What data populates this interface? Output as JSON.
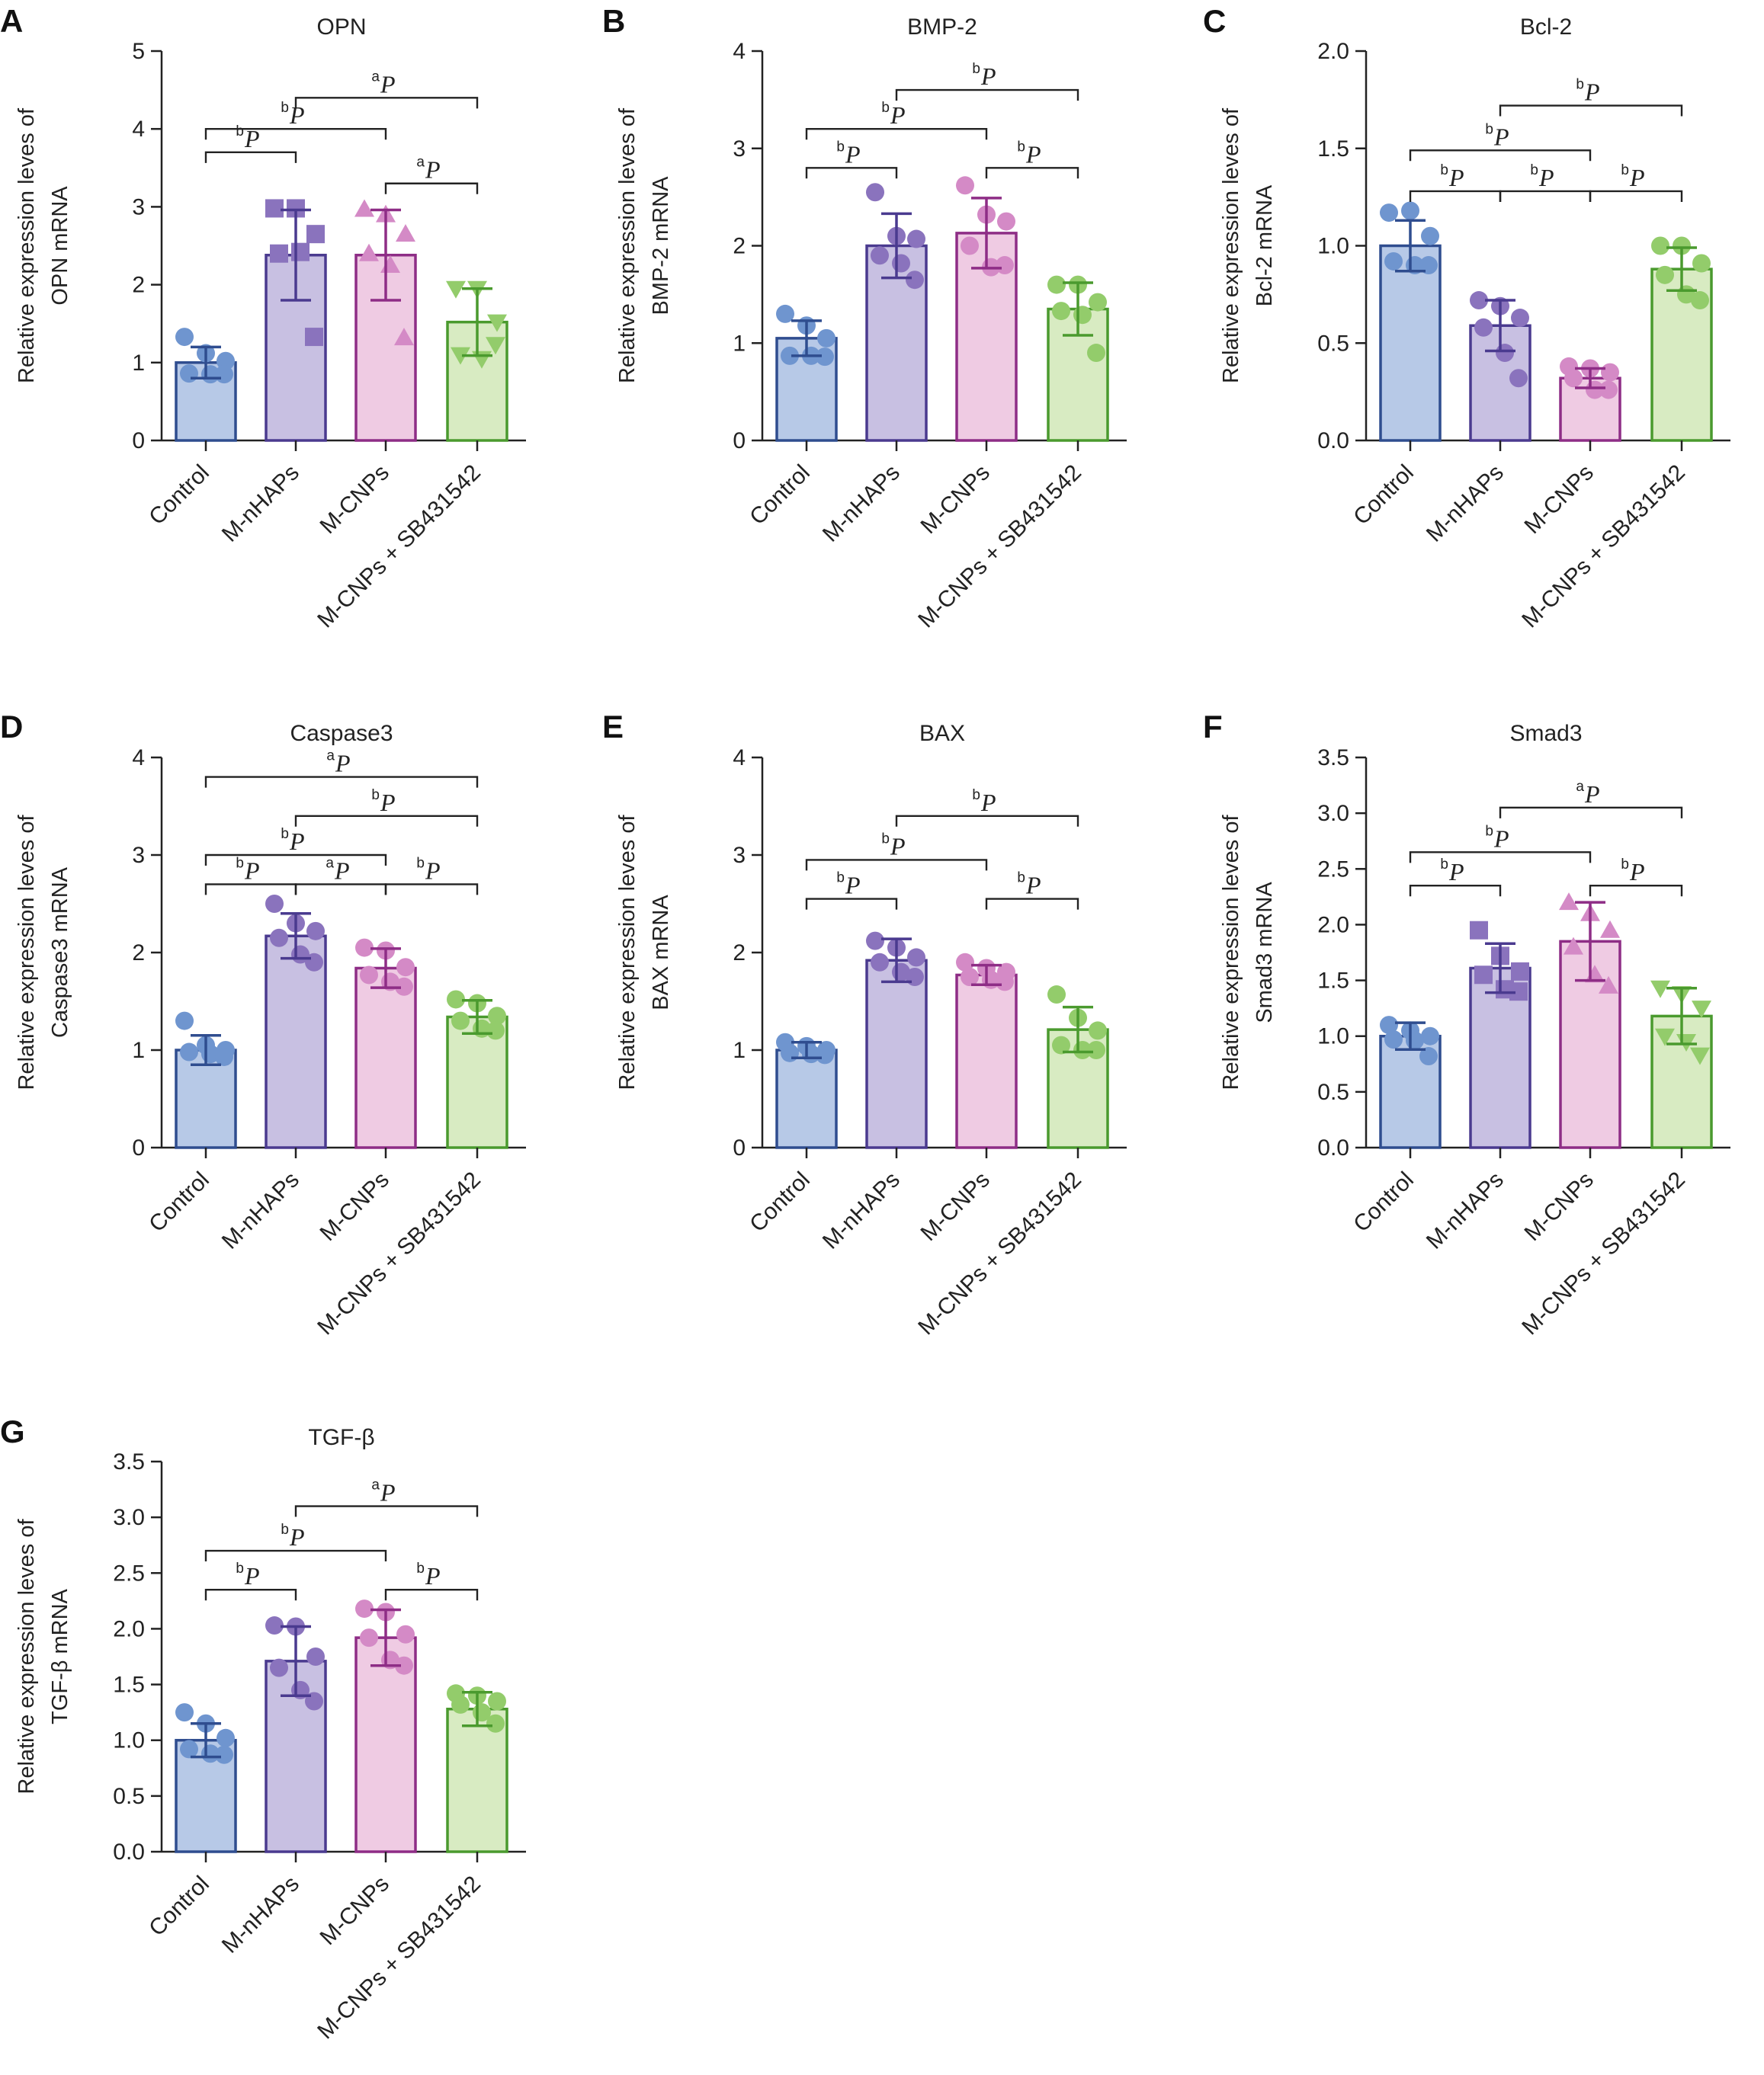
{
  "colors": {
    "Control": {
      "fill": "#b7c9e7",
      "stroke": "#2f4d8f",
      "point": "#6f95cf"
    },
    "M-nHAPs": {
      "fill": "#c8c0e2",
      "stroke": "#4a3a8f",
      "point": "#8a73bd"
    },
    "M-CNPs": {
      "fill": "#efcbe3",
      "stroke": "#8e2d86",
      "point": "#d48ac6"
    },
    "M-CNPs + SB431542": {
      "fill": "#d8ebc2",
      "stroke": "#4a9a2e",
      "point": "#93cc6b"
    }
  },
  "chart_data": [
    {
      "panel": "A",
      "type": "bar",
      "title": "OPN",
      "ylabel_lines": [
        "Relative expression leves of",
        "OPN mRNA"
      ],
      "categories": [
        "Control",
        "M-nHAPs",
        "M-CNPs",
        "M-CNPs + SB431542"
      ],
      "marker": [
        "circle",
        "square",
        "triangle",
        "triangle-down"
      ],
      "ylim": [
        0,
        5
      ],
      "yticks": [
        "0",
        "1",
        "2",
        "3",
        "4",
        "5"
      ],
      "values": [
        1.0,
        2.38,
        2.38,
        1.52
      ],
      "errors": [
        0.2,
        0.58,
        0.58,
        0.43
      ],
      "points": [
        [
          1.33,
          1.12,
          1.02,
          0.86,
          0.85,
          0.85
        ],
        [
          2.98,
          2.98,
          2.65,
          2.4,
          2.42,
          1.33
        ],
        [
          2.97,
          2.9,
          2.65,
          2.4,
          2.25,
          1.32
        ],
        [
          1.95,
          1.95,
          1.52,
          1.1,
          1.05,
          1.23
        ]
      ],
      "significance": [
        {
          "from": 0,
          "to": 1,
          "y": 3.7,
          "sup": "b",
          "label": "P"
        },
        {
          "from": 0,
          "to": 2,
          "y": 4.0,
          "sup": "b",
          "label": "P"
        },
        {
          "from": 2,
          "to": 3,
          "y": 3.3,
          "sup": "a",
          "label": "P"
        },
        {
          "from": 1,
          "to": 3,
          "y": 4.4,
          "sup": "a",
          "label": "P"
        }
      ]
    },
    {
      "panel": "B",
      "type": "bar",
      "title": "BMP-2",
      "ylabel_lines": [
        "Relative expression leves of",
        "BMP-2 mRNA"
      ],
      "categories": [
        "Control",
        "M-nHAPs",
        "M-CNPs",
        "M-CNPs + SB431542"
      ],
      "marker": [
        "circle",
        "circle",
        "circle",
        "circle"
      ],
      "ylim": [
        0,
        4
      ],
      "yticks": [
        "0",
        "1",
        "2",
        "3",
        "4"
      ],
      "values": [
        1.05,
        2.0,
        2.13,
        1.35
      ],
      "errors": [
        0.18,
        0.33,
        0.36,
        0.27
      ],
      "points": [
        [
          1.3,
          1.18,
          1.05,
          0.87,
          0.87,
          0.86
        ],
        [
          2.55,
          2.1,
          2.07,
          1.9,
          1.82,
          1.65
        ],
        [
          2.62,
          2.32,
          2.25,
          2.0,
          1.78,
          1.8
        ],
        [
          1.6,
          1.6,
          1.42,
          1.33,
          1.29,
          0.9
        ]
      ],
      "significance": [
        {
          "from": 0,
          "to": 1,
          "y": 2.8,
          "sup": "b",
          "label": "P"
        },
        {
          "from": 0,
          "to": 2,
          "y": 3.2,
          "sup": "b",
          "label": "P"
        },
        {
          "from": 2,
          "to": 3,
          "y": 2.8,
          "sup": "b",
          "label": "P"
        },
        {
          "from": 1,
          "to": 3,
          "y": 3.6,
          "sup": "b",
          "label": "P"
        }
      ]
    },
    {
      "panel": "C",
      "type": "bar",
      "title": "Bcl-2",
      "ylabel_lines": [
        "Relative expression leves of",
        "Bcl-2 mRNA"
      ],
      "categories": [
        "Control",
        "M-nHAPs",
        "M-CNPs",
        "M-CNPs + SB431542"
      ],
      "marker": [
        "circle",
        "circle",
        "circle",
        "circle"
      ],
      "ylim": [
        0,
        2.0
      ],
      "yticks": [
        "0.0",
        "0.5",
        "1.0",
        "1.5",
        "2.0"
      ],
      "values": [
        1.0,
        0.59,
        0.32,
        0.88
      ],
      "errors": [
        0.13,
        0.13,
        0.05,
        0.11
      ],
      "points": [
        [
          1.17,
          1.18,
          1.05,
          0.92,
          0.9,
          0.9
        ],
        [
          0.72,
          0.69,
          0.63,
          0.58,
          0.45,
          0.32
        ],
        [
          0.38,
          0.37,
          0.35,
          0.32,
          0.26,
          0.26
        ],
        [
          1.0,
          1.0,
          0.91,
          0.85,
          0.75,
          0.72
        ]
      ],
      "significance": [
        {
          "from": 0,
          "to": 1,
          "y": 1.28,
          "sup": "b",
          "label": "P"
        },
        {
          "from": 1,
          "to": 2,
          "y": 1.28,
          "sup": "b",
          "label": "P"
        },
        {
          "from": 0,
          "to": 2,
          "y": 1.49,
          "sup": "b",
          "label": "P"
        },
        {
          "from": 2,
          "to": 3,
          "y": 1.28,
          "sup": "b",
          "label": "P"
        },
        {
          "from": 1,
          "to": 3,
          "y": 1.72,
          "sup": "b",
          "label": "P"
        }
      ]
    },
    {
      "panel": "D",
      "type": "bar",
      "title": "Caspase3",
      "ylabel_lines": [
        "Relative expression leves of",
        "Caspase3 mRNA"
      ],
      "categories": [
        "Control",
        "M-nHAPs",
        "M-CNPs",
        "M-CNPs + SB431542"
      ],
      "marker": [
        "circle",
        "circle",
        "circle",
        "circle"
      ],
      "ylim": [
        0,
        4
      ],
      "yticks": [
        "0",
        "1",
        "2",
        "3",
        "4"
      ],
      "values": [
        1.0,
        2.17,
        1.84,
        1.34
      ],
      "errors": [
        0.15,
        0.23,
        0.2,
        0.17
      ],
      "points": [
        [
          1.3,
          1.05,
          1.0,
          0.98,
          0.96,
          0.93
        ],
        [
          2.5,
          2.3,
          2.22,
          2.15,
          1.98,
          1.9
        ],
        [
          2.05,
          2.02,
          1.85,
          1.77,
          1.7,
          1.65
        ],
        [
          1.52,
          1.48,
          1.35,
          1.3,
          1.22,
          1.2
        ]
      ],
      "significance": [
        {
          "from": 0,
          "to": 1,
          "y": 2.7,
          "sup": "b",
          "label": "P"
        },
        {
          "from": 1,
          "to": 2,
          "y": 2.7,
          "sup": "a",
          "label": "P"
        },
        {
          "from": 0,
          "to": 2,
          "y": 3.0,
          "sup": "b",
          "label": "P"
        },
        {
          "from": 2,
          "to": 3,
          "y": 2.7,
          "sup": "b",
          "label": "P"
        },
        {
          "from": 1,
          "to": 3,
          "y": 3.4,
          "sup": "b",
          "label": "P"
        },
        {
          "from": 0,
          "to": 3,
          "y": 3.8,
          "sup": "a",
          "label": "P"
        }
      ]
    },
    {
      "panel": "E",
      "type": "bar",
      "title": "BAX",
      "ylabel_lines": [
        "Relative expression leves of",
        "BAX mRNA"
      ],
      "categories": [
        "Control",
        "M-nHAPs",
        "M-CNPs",
        "M-CNPs + SB431542"
      ],
      "marker": [
        "circle",
        "circle",
        "circle",
        "circle"
      ],
      "ylim": [
        0,
        4
      ],
      "yticks": [
        "0",
        "1",
        "2",
        "3",
        "4"
      ],
      "values": [
        1.0,
        1.92,
        1.77,
        1.21
      ],
      "errors": [
        0.08,
        0.22,
        0.1,
        0.23
      ],
      "points": [
        [
          1.08,
          1.04,
          1.0,
          0.97,
          0.96,
          0.95
        ],
        [
          2.12,
          2.05,
          1.95,
          1.9,
          1.8,
          1.75
        ],
        [
          1.9,
          1.84,
          1.8,
          1.75,
          1.72,
          1.7
        ],
        [
          1.57,
          1.33,
          1.2,
          1.05,
          1.0,
          1.0
        ]
      ],
      "significance": [
        {
          "from": 0,
          "to": 1,
          "y": 2.55,
          "sup": "b",
          "label": "P"
        },
        {
          "from": 0,
          "to": 2,
          "y": 2.95,
          "sup": "b",
          "label": "P"
        },
        {
          "from": 2,
          "to": 3,
          "y": 2.55,
          "sup": "b",
          "label": "P"
        },
        {
          "from": 1,
          "to": 3,
          "y": 3.4,
          "sup": "b",
          "label": "P"
        }
      ]
    },
    {
      "panel": "F",
      "type": "bar",
      "title": "Smad3",
      "ylabel_lines": [
        "Relative expression leves of",
        "Smad3 mRNA"
      ],
      "categories": [
        "Control",
        "M-nHAPs",
        "M-CNPs",
        "M-CNPs + SB431542"
      ],
      "marker": [
        "circle",
        "square",
        "triangle",
        "triangle-down"
      ],
      "ylim": [
        0,
        3.5
      ],
      "yticks": [
        "0.0",
        "0.5",
        "1.0",
        "1.5",
        "2.0",
        "2.5",
        "3.0",
        "3.5"
      ],
      "values": [
        1.0,
        1.61,
        1.85,
        1.18
      ],
      "errors": [
        0.12,
        0.22,
        0.35,
        0.25
      ],
      "points": [
        [
          1.1,
          1.05,
          1.0,
          0.97,
          0.96,
          0.82
        ],
        [
          1.95,
          1.72,
          1.58,
          1.55,
          1.42,
          1.4
        ],
        [
          2.2,
          2.1,
          1.95,
          1.8,
          1.55,
          1.45
        ],
        [
          1.43,
          1.38,
          1.25,
          1.0,
          0.95,
          0.83
        ]
      ],
      "significance": [
        {
          "from": 0,
          "to": 1,
          "y": 2.35,
          "sup": "b",
          "label": "P"
        },
        {
          "from": 0,
          "to": 2,
          "y": 2.65,
          "sup": "b",
          "label": "P"
        },
        {
          "from": 2,
          "to": 3,
          "y": 2.35,
          "sup": "b",
          "label": "P"
        },
        {
          "from": 1,
          "to": 3,
          "y": 3.05,
          "sup": "a",
          "label": "P"
        }
      ]
    },
    {
      "panel": "G",
      "type": "bar",
      "title": "TGF-β",
      "ylabel_lines": [
        "Relative expression leves of",
        "TGF-β mRNA"
      ],
      "categories": [
        "Control",
        "M-nHAPs",
        "M-CNPs",
        "M-CNPs + SB431542"
      ],
      "marker": [
        "circle",
        "circle",
        "circle",
        "circle"
      ],
      "ylim": [
        0,
        3.5
      ],
      "yticks": [
        "0.0",
        "0.5",
        "1.0",
        "1.5",
        "2.0",
        "2.5",
        "3.0",
        "3.5"
      ],
      "values": [
        1.0,
        1.71,
        1.92,
        1.28
      ],
      "errors": [
        0.15,
        0.31,
        0.25,
        0.15
      ],
      "points": [
        [
          1.25,
          1.15,
          1.02,
          0.92,
          0.88,
          0.87
        ],
        [
          2.03,
          2.02,
          1.75,
          1.65,
          1.45,
          1.35
        ],
        [
          2.18,
          2.15,
          1.95,
          1.92,
          1.72,
          1.67
        ],
        [
          1.42,
          1.4,
          1.35,
          1.32,
          1.25,
          1.15
        ]
      ],
      "significance": [
        {
          "from": 0,
          "to": 1,
          "y": 2.35,
          "sup": "b",
          "label": "P"
        },
        {
          "from": 0,
          "to": 2,
          "y": 2.7,
          "sup": "b",
          "label": "P"
        },
        {
          "from": 2,
          "to": 3,
          "y": 2.35,
          "sup": "b",
          "label": "P"
        },
        {
          "from": 1,
          "to": 3,
          "y": 3.1,
          "sup": "a",
          "label": "P"
        }
      ]
    }
  ]
}
